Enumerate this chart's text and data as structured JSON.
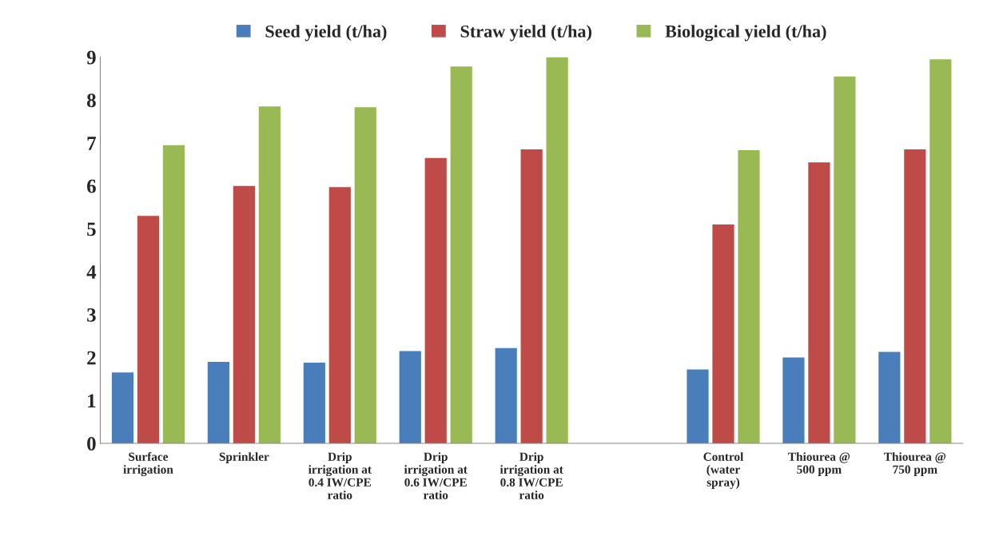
{
  "chart_data": {
    "type": "bar",
    "categories": [
      "Surface\nirrigation",
      "Sprinkler",
      "Drip\nirrigation at\n0.4 IW/CPE\nratio",
      "Drip\nirrigation at\n0.6 IW/CPE\nratio",
      "Drip\nirrigation at\n0.8 IW/CPE\nratio",
      null,
      "Control\n(water\nspray)",
      "Thiourea @\n500 ppm",
      "Thiourea @\n750 ppm"
    ],
    "series": [
      {
        "name": "Seed yield (t/ha)",
        "color": "#4a7ebb",
        "values": [
          1.65,
          1.9,
          1.88,
          2.15,
          2.22,
          null,
          1.72,
          2.0,
          2.13
        ]
      },
      {
        "name": "Straw yield (t/ha)",
        "color": "#be4b48",
        "values": [
          5.3,
          6.0,
          5.97,
          6.65,
          6.85,
          null,
          5.1,
          6.55,
          6.85
        ]
      },
      {
        "name": "Biological yield (t/ha)",
        "color": "#98b954",
        "values": [
          6.95,
          7.85,
          7.83,
          8.78,
          9.0,
          null,
          6.83,
          8.55,
          8.95
        ]
      }
    ],
    "ylim": [
      0,
      9
    ],
    "yticks": [
      0,
      1,
      2,
      3,
      4,
      5,
      6,
      7,
      8,
      9
    ],
    "grid": false,
    "legend": "top"
  }
}
